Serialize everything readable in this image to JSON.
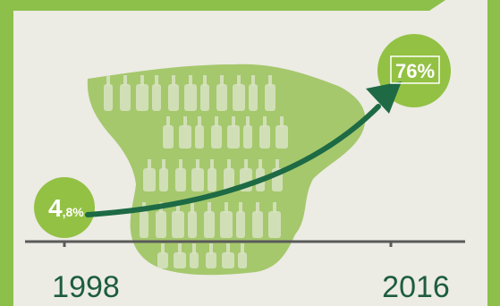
{
  "chart_data": {
    "type": "line",
    "title": "",
    "xlabel": "",
    "ylabel": "",
    "ylim": [
      0,
      100
    ],
    "x": [
      "1998",
      "2016"
    ],
    "series": [
      {
        "values": [
          4.8,
          76
        ]
      }
    ],
    "data_labels": [
      {
        "big": "4",
        "small": ",8%"
      },
      {
        "big": "76%",
        "small": ""
      }
    ],
    "pictogram": "spain-map-with-glass-bottles",
    "colors": {
      "background": "#ecebe4",
      "frame": "#8cc04a",
      "circle": "#93c143",
      "map": "#a5c86c",
      "bottle": "#d8e3c4",
      "arrow": "#1d6a45",
      "axis": "#5a5a5a",
      "year_text": "#1d5d3d",
      "label_text": "#ffffff"
    }
  }
}
